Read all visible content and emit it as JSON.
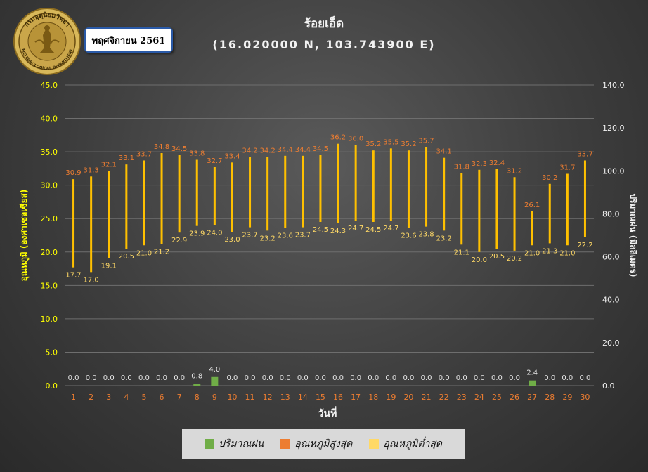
{
  "header": {
    "logo_text_top": "กรมอุตุนิยมวิทยา",
    "logo_text_bottom": "METEOROLOGICAL DEPARTMENT",
    "month_label": "พฤศจิกายน 2561",
    "title": "ร้อยเอ็ด",
    "subtitle": "(16.020000  N, 103.743900  E)"
  },
  "colors": {
    "rain": "#70ad47",
    "max_temp": "#ed7d31",
    "min_temp": "#ffd966",
    "range_bar": "#ffc000",
    "left_axis": "#ffff00",
    "x_tick": "#ed7d31"
  },
  "legend": {
    "rain": "ปริมาณฝน",
    "max": "อุณหภูมิสูงสุด",
    "min": "อุณหภูมิต่ำสุด"
  },
  "chart_data": {
    "type": "bar",
    "xlabel": "วันที่",
    "ylabel_left": "อุณหภูมิ (องศาเซลเซียส)",
    "ylabel_right": "ปริมาณฝน (มิลลิเมตร)",
    "ylim_left": [
      0,
      45
    ],
    "ylim_right": [
      0,
      140
    ],
    "yticks_left": [
      "0.0",
      "5.0",
      "10.0",
      "15.0",
      "20.0",
      "25.0",
      "30.0",
      "35.0",
      "40.0",
      "45.0"
    ],
    "yticks_right": [
      "0.0",
      "20.0",
      "40.0",
      "60.0",
      "80.0",
      "100.0",
      "120.0",
      "140.0"
    ],
    "legend_position": "bottom",
    "grid": true,
    "categories": [
      "1",
      "2",
      "3",
      "4",
      "5",
      "6",
      "7",
      "8",
      "9",
      "10",
      "11",
      "12",
      "13",
      "14",
      "15",
      "16",
      "17",
      "18",
      "19",
      "20",
      "21",
      "22",
      "23",
      "24",
      "25",
      "26",
      "27",
      "28",
      "29",
      "30"
    ],
    "series": [
      {
        "name": "ปริมาณฝน",
        "axis": "right",
        "values": [
          0.0,
          0.0,
          0.0,
          0.0,
          0.0,
          0.0,
          0.0,
          0.8,
          4.0,
          0.0,
          0.0,
          0.0,
          0.0,
          0.0,
          0.0,
          0.0,
          0.0,
          0.0,
          0.0,
          0.0,
          0.0,
          0.0,
          0.0,
          0.0,
          0.0,
          0.0,
          2.4,
          0.0,
          0.0,
          0.0
        ],
        "labels": [
          "0.0",
          "0.0",
          "0.0",
          "0.0",
          "0.0",
          "0.0",
          "0.0",
          "0.8",
          "4.0",
          "0.0",
          "0.0",
          "0.0",
          "0.0",
          "0.0",
          "0.0",
          "0.0",
          "0.0",
          "0.0",
          "0.0",
          "0.0",
          "0.0",
          "0.0",
          "0.0",
          "0.0",
          "0.0",
          "0.0",
          "2.4",
          "0.0",
          "0.0",
          "0.0"
        ]
      },
      {
        "name": "อุณหภูมิสูงสุด",
        "axis": "left",
        "values": [
          30.9,
          31.3,
          32.1,
          33.1,
          33.7,
          34.8,
          34.5,
          33.8,
          32.7,
          33.4,
          34.2,
          34.2,
          34.4,
          34.4,
          34.5,
          36.2,
          36.0,
          35.2,
          35.5,
          35.2,
          35.7,
          34.1,
          31.8,
          32.3,
          32.4,
          31.2,
          26.1,
          30.2,
          31.7,
          33.7
        ],
        "labels": [
          "30.9",
          "31.3",
          "32.1",
          "33.1",
          "33.7",
          "34.8",
          "34.5",
          "33.8",
          "32.7",
          "33.4",
          "34.2",
          "34.2",
          "34.4",
          "34.4",
          "34.5",
          "36.2",
          "36.0",
          "35.2",
          "35.5",
          "35.2",
          "35.7",
          "34.1",
          "31.8",
          "32.3",
          "32.4",
          "31.2",
          "26.1",
          "30.2",
          "31.7",
          "33.7"
        ]
      },
      {
        "name": "อุณหภูมิต่ำสุด",
        "axis": "left",
        "values": [
          17.7,
          17.0,
          19.1,
          20.5,
          21.0,
          21.2,
          22.9,
          23.9,
          24.0,
          23.0,
          23.7,
          23.2,
          23.6,
          23.7,
          24.5,
          24.3,
          24.7,
          24.5,
          24.7,
          23.6,
          23.8,
          23.2,
          21.1,
          20.0,
          20.5,
          20.2,
          21.0,
          21.3,
          21.0,
          22.2
        ],
        "labels": [
          "17.7",
          "17.0",
          "19.1",
          "20.5",
          "21.0",
          "21.2",
          "22.9",
          "23.9",
          "24.0",
          "23.0",
          "23.7",
          "23.2",
          "23.6",
          "23.7",
          "24.5",
          "24.3",
          "24.7",
          "24.5",
          "24.7",
          "23.6",
          "23.8",
          "23.2",
          "21.1",
          "20.0",
          "20.5",
          "20.2",
          "21.0",
          "21.3",
          "21.0",
          "22.2"
        ]
      }
    ]
  }
}
